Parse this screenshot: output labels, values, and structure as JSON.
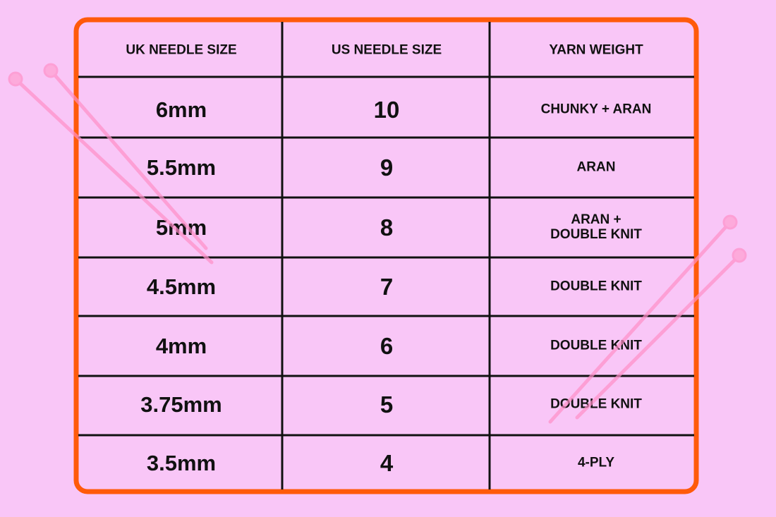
{
  "table": {
    "header": [
      "UK NEEDLE SIZE",
      "US NEEDLE SIZE",
      "YARN WEIGHT"
    ],
    "rows": [
      [
        "6mm",
        "10",
        "CHUNKY + ARAN"
      ],
      [
        "5.5mm",
        "9",
        "ARAN"
      ],
      [
        "5mm",
        "8",
        "ARAN +\nDOUBLE KNIT"
      ],
      [
        "4.5mm",
        "7",
        "DOUBLE KNIT"
      ],
      [
        "4mm",
        "6",
        "DOUBLE KNIT"
      ],
      [
        "3.75mm",
        "5",
        "DOUBLE KNIT"
      ],
      [
        "3.5mm",
        "4",
        "4-PLY"
      ]
    ]
  }
}
